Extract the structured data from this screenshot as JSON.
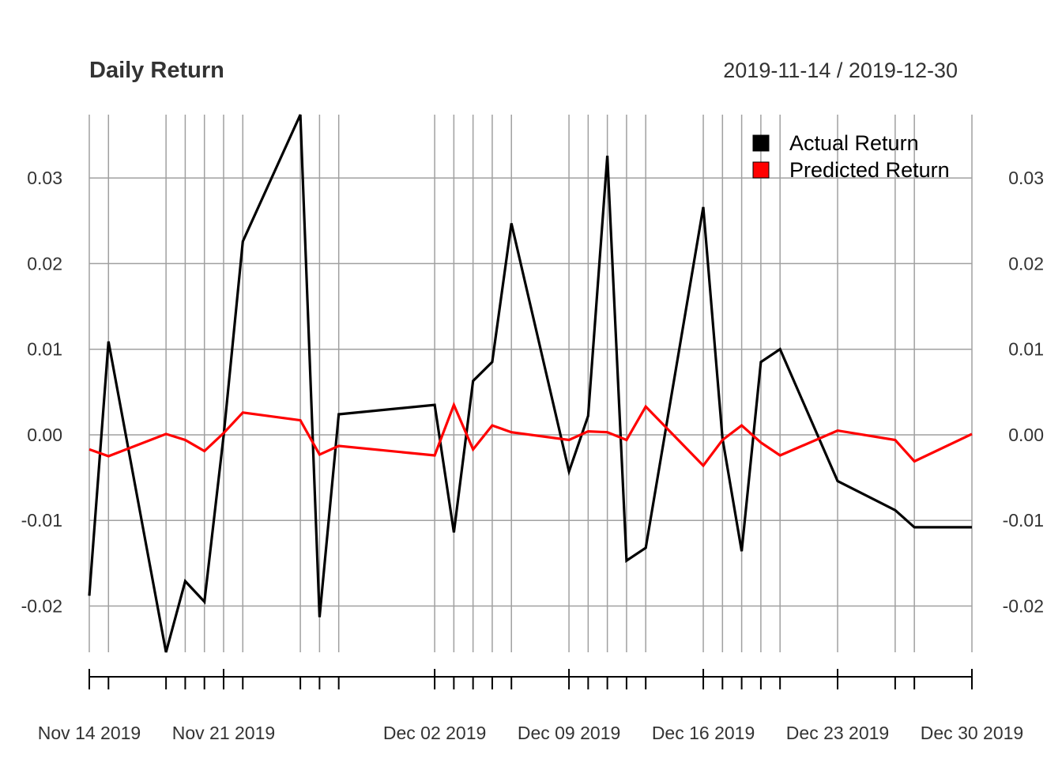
{
  "chart_data": {
    "type": "line",
    "title": "Daily Return",
    "date_range": "2019-11-14 / 2019-12-30",
    "xlabel": "",
    "ylabel": "",
    "ylim": [
      -0.0254,
      0.0374
    ],
    "y_ticks": [
      -0.02,
      -0.01,
      0.0,
      0.01,
      0.02,
      0.03
    ],
    "y_tick_labels": [
      "-0.02",
      "-0.01",
      "0.00",
      "0.01",
      "0.02",
      "0.03"
    ],
    "x": [
      "2019-11-14",
      "2019-11-15",
      "2019-11-18",
      "2019-11-19",
      "2019-11-20",
      "2019-11-21",
      "2019-11-22",
      "2019-11-25",
      "2019-11-26",
      "2019-11-27",
      "2019-12-02",
      "2019-12-03",
      "2019-12-04",
      "2019-12-05",
      "2019-12-06",
      "2019-12-09",
      "2019-12-10",
      "2019-12-11",
      "2019-12-12",
      "2019-12-13",
      "2019-12-16",
      "2019-12-17",
      "2019-12-18",
      "2019-12-19",
      "2019-12-20",
      "2019-12-23",
      "2019-12-26",
      "2019-12-27",
      "2019-12-30"
    ],
    "x_major_ticks": [
      "2019-11-14",
      "2019-11-21",
      "2019-12-02",
      "2019-12-09",
      "2019-12-16",
      "2019-12-23",
      "2019-12-30"
    ],
    "x_major_labels": [
      "Nov 14 2019",
      "Nov 21 2019",
      "Dec 02 2019",
      "Dec 09 2019",
      "Dec 16 2019",
      "Dec 23 2019",
      "Dec 30 2019"
    ],
    "series": [
      {
        "name": "Actual Return",
        "color": "#000000",
        "values": [
          -0.0188,
          0.0109,
          -0.0254,
          -0.0171,
          -0.0195,
          -0.0001,
          0.0226,
          0.0374,
          -0.0213,
          0.0024,
          0.0035,
          -0.0114,
          0.0063,
          0.0085,
          0.0247,
          -0.0043,
          0.0022,
          0.0326,
          -0.0147,
          -0.0132,
          0.0266,
          -0.0004,
          -0.0136,
          0.0085,
          0.01,
          -0.0054,
          -0.0088,
          -0.0108,
          -0.0108
        ]
      },
      {
        "name": "Predicted Return",
        "color": "#ff0000",
        "values": [
          -0.0017,
          -0.0025,
          0.0001,
          -0.0006,
          -0.0019,
          0.0002,
          0.0026,
          0.0017,
          -0.0023,
          -0.0013,
          -0.0024,
          0.0035,
          -0.0017,
          0.0011,
          0.0003,
          -0.0006,
          0.0004,
          0.0003,
          -0.0006,
          0.0033,
          -0.0036,
          -0.0006,
          0.0011,
          -0.0009,
          -0.0024,
          0.0005,
          -0.0006,
          -0.0031,
          0.0001
        ]
      }
    ],
    "grid": true,
    "legend_position": "top-right"
  }
}
